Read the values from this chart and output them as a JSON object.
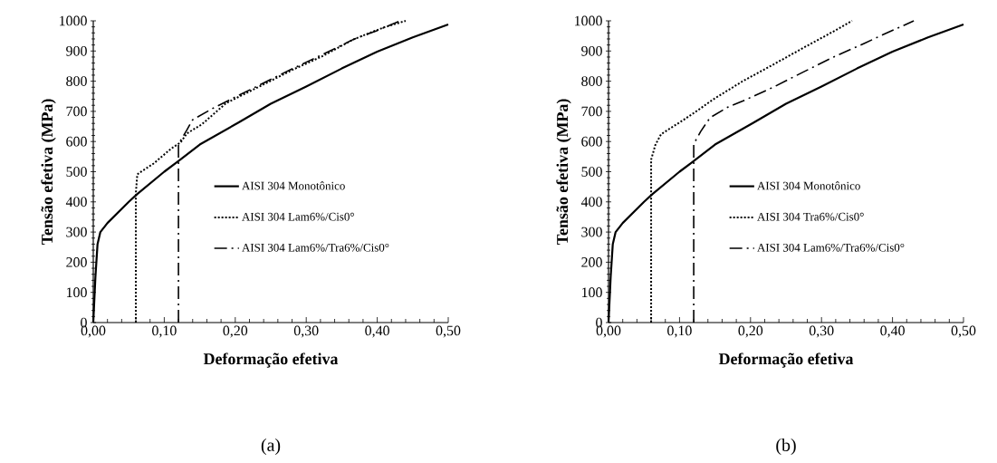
{
  "chart_data": [
    {
      "type": "line",
      "xlabel": "Deformação efetiva",
      "ylabel": "Tensão efetiva (MPa)",
      "annotations": [
        "(a)"
      ],
      "xlim": [
        0,
        0.5
      ],
      "ylim": [
        0,
        1000
      ],
      "xticks": [
        {
          "value": 0,
          "label": "0,00"
        },
        {
          "value": 0.1,
          "label": "0,10"
        },
        {
          "value": 0.2,
          "label": "0,20"
        },
        {
          "value": 0.3,
          "label": "0,30"
        },
        {
          "value": 0.4,
          "label": "0,40"
        },
        {
          "value": 0.5,
          "label": "0,50"
        }
      ],
      "yticks": [
        0,
        100,
        200,
        300,
        400,
        500,
        600,
        700,
        800,
        900,
        1000
      ],
      "legend": "right",
      "grid": false,
      "marker": "none",
      "series": [
        {
          "name": "AISI 304 Monotônico",
          "color": "#000000",
          "line_style": "solid",
          "x": [
            0,
            0.003,
            0.006,
            0.01,
            0.02,
            0.05,
            0.062,
            0.1,
            0.121,
            0.15,
            0.204,
            0.25,
            0.3,
            0.35,
            0.4,
            0.45,
            0.5
          ],
          "values": [
            0,
            150,
            260,
            300,
            330,
            400,
            426,
            500,
            537,
            590,
            662,
            725,
            782,
            842,
            898,
            945,
            988
          ]
        },
        {
          "name": "AISI 304 Lam6%/Cis0°",
          "color": "#000000",
          "line_style": "dotted",
          "x": [
            0.06,
            0.06,
            0.062,
            0.068,
            0.085,
            0.11,
            0.123,
            0.132,
            0.153,
            0.187,
            0.238,
            0.281,
            0.323,
            0.366,
            0.409,
            0.44
          ],
          "values": [
            0,
            430,
            491,
            501,
            527,
            577,
            597,
            627,
            657,
            727,
            787,
            838,
            883,
            938,
            978,
            1000
          ]
        },
        {
          "name": "AISI 304 Lam6%/Tra6%/Cis0°",
          "color": "#000000",
          "line_style": "dashdot",
          "x": [
            0.12,
            0.12,
            0.131,
            0.14,
            0.17,
            0.204,
            0.234,
            0.268,
            0.3,
            0.336,
            0.366,
            0.4,
            0.43
          ],
          "values": [
            0,
            592,
            635,
            672,
            712,
            752,
            787,
            827,
            863,
            903,
            938,
            968,
            998
          ]
        }
      ]
    },
    {
      "type": "line",
      "xlabel": "Deformação efetiva",
      "ylabel": "Tensão efetiva (MPa)",
      "annotations": [
        "(b)"
      ],
      "xlim": [
        0,
        0.5
      ],
      "ylim": [
        0,
        1000
      ],
      "xticks": [
        {
          "value": 0,
          "label": "0,00"
        },
        {
          "value": 0.1,
          "label": "0,10"
        },
        {
          "value": 0.2,
          "label": "0,20"
        },
        {
          "value": 0.3,
          "label": "0,30"
        },
        {
          "value": 0.4,
          "label": "0,40"
        },
        {
          "value": 0.5,
          "label": "0,50"
        }
      ],
      "yticks": [
        0,
        100,
        200,
        300,
        400,
        500,
        600,
        700,
        800,
        900,
        1000
      ],
      "legend": "right",
      "grid": false,
      "marker": "none",
      "series": [
        {
          "name": "AISI 304 Monotônico",
          "color": "#000000",
          "line_style": "solid",
          "x": [
            0,
            0.003,
            0.006,
            0.01,
            0.02,
            0.05,
            0.062,
            0.1,
            0.121,
            0.15,
            0.204,
            0.25,
            0.3,
            0.35,
            0.4,
            0.45,
            0.5
          ],
          "values": [
            0,
            150,
            260,
            300,
            330,
            400,
            426,
            500,
            537,
            590,
            662,
            725,
            782,
            842,
            898,
            945,
            988
          ]
        },
        {
          "name": "AISI 304 Tra6%/Cis0°",
          "color": "#000000",
          "line_style": "dotted",
          "x": [
            0.06,
            0.06,
            0.066,
            0.074,
            0.087,
            0.104,
            0.126,
            0.147,
            0.189,
            0.232,
            0.274,
            0.317,
            0.343
          ],
          "values": [
            0,
            540,
            589,
            624,
            644,
            669,
            704,
            739,
            800,
            855,
            910,
            965,
            1000
          ]
        },
        {
          "name": "AISI 304 Lam6%/Tra6%/Cis0°",
          "color": "#000000",
          "line_style": "dashdot",
          "x": [
            0.12,
            0.12,
            0.13,
            0.143,
            0.168,
            0.189,
            0.232,
            0.274,
            0.317,
            0.36,
            0.38,
            0.43
          ],
          "values": [
            0,
            592,
            634,
            679,
            714,
            734,
            780,
            830,
            880,
            925,
            947,
            1000
          ]
        }
      ]
    }
  ]
}
